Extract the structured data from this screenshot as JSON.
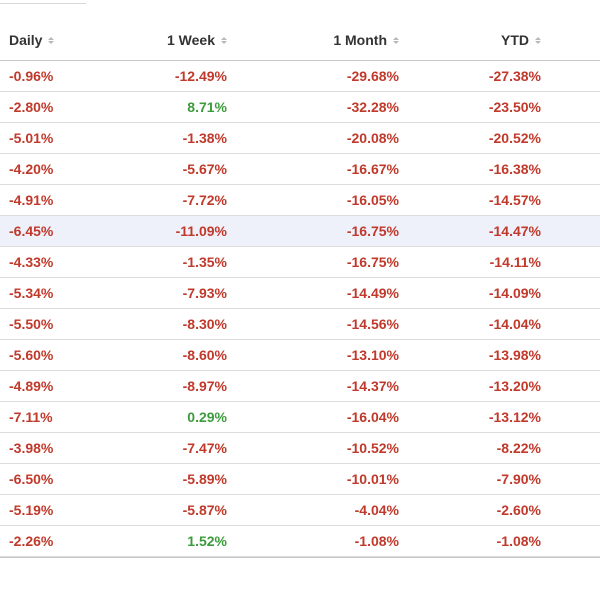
{
  "colors": {
    "negative": "#c0392b",
    "positive": "#3c9b3c",
    "highlight_row": "#eef0fa"
  },
  "table": {
    "columns": [
      {
        "label": "Daily",
        "sort_icon": "sort-icon"
      },
      {
        "label": "1 Week",
        "sort_icon": "sort-icon"
      },
      {
        "label": "1 Month",
        "sort_icon": "sort-icon"
      },
      {
        "label": "YTD",
        "sort_icon": "sort-icon"
      }
    ],
    "highlighted_row_index": 5,
    "rows": [
      [
        "-0.96%",
        "-12.49%",
        "-29.68%",
        "-27.38%"
      ],
      [
        "-2.80%",
        "8.71%",
        "-32.28%",
        "-23.50%"
      ],
      [
        "-5.01%",
        "-1.38%",
        "-20.08%",
        "-20.52%"
      ],
      [
        "-4.20%",
        "-5.67%",
        "-16.67%",
        "-16.38%"
      ],
      [
        "-4.91%",
        "-7.72%",
        "-16.05%",
        "-14.57%"
      ],
      [
        "-6.45%",
        "-11.09%",
        "-16.75%",
        "-14.47%"
      ],
      [
        "-4.33%",
        "-1.35%",
        "-16.75%",
        "-14.11%"
      ],
      [
        "-5.34%",
        "-7.93%",
        "-14.49%",
        "-14.09%"
      ],
      [
        "-5.50%",
        "-8.30%",
        "-14.56%",
        "-14.04%"
      ],
      [
        "-5.60%",
        "-8.60%",
        "-13.10%",
        "-13.98%"
      ],
      [
        "-4.89%",
        "-8.97%",
        "-14.37%",
        "-13.20%"
      ],
      [
        "-7.11%",
        "0.29%",
        "-16.04%",
        "-13.12%"
      ],
      [
        "-3.98%",
        "-7.47%",
        "-10.52%",
        "-8.22%"
      ],
      [
        "-6.50%",
        "-5.89%",
        "-10.01%",
        "-7.90%"
      ],
      [
        "-5.19%",
        "-5.87%",
        "-4.04%",
        "-2.60%"
      ],
      [
        "-2.26%",
        "1.52%",
        "-1.08%",
        "-1.08%"
      ]
    ]
  }
}
